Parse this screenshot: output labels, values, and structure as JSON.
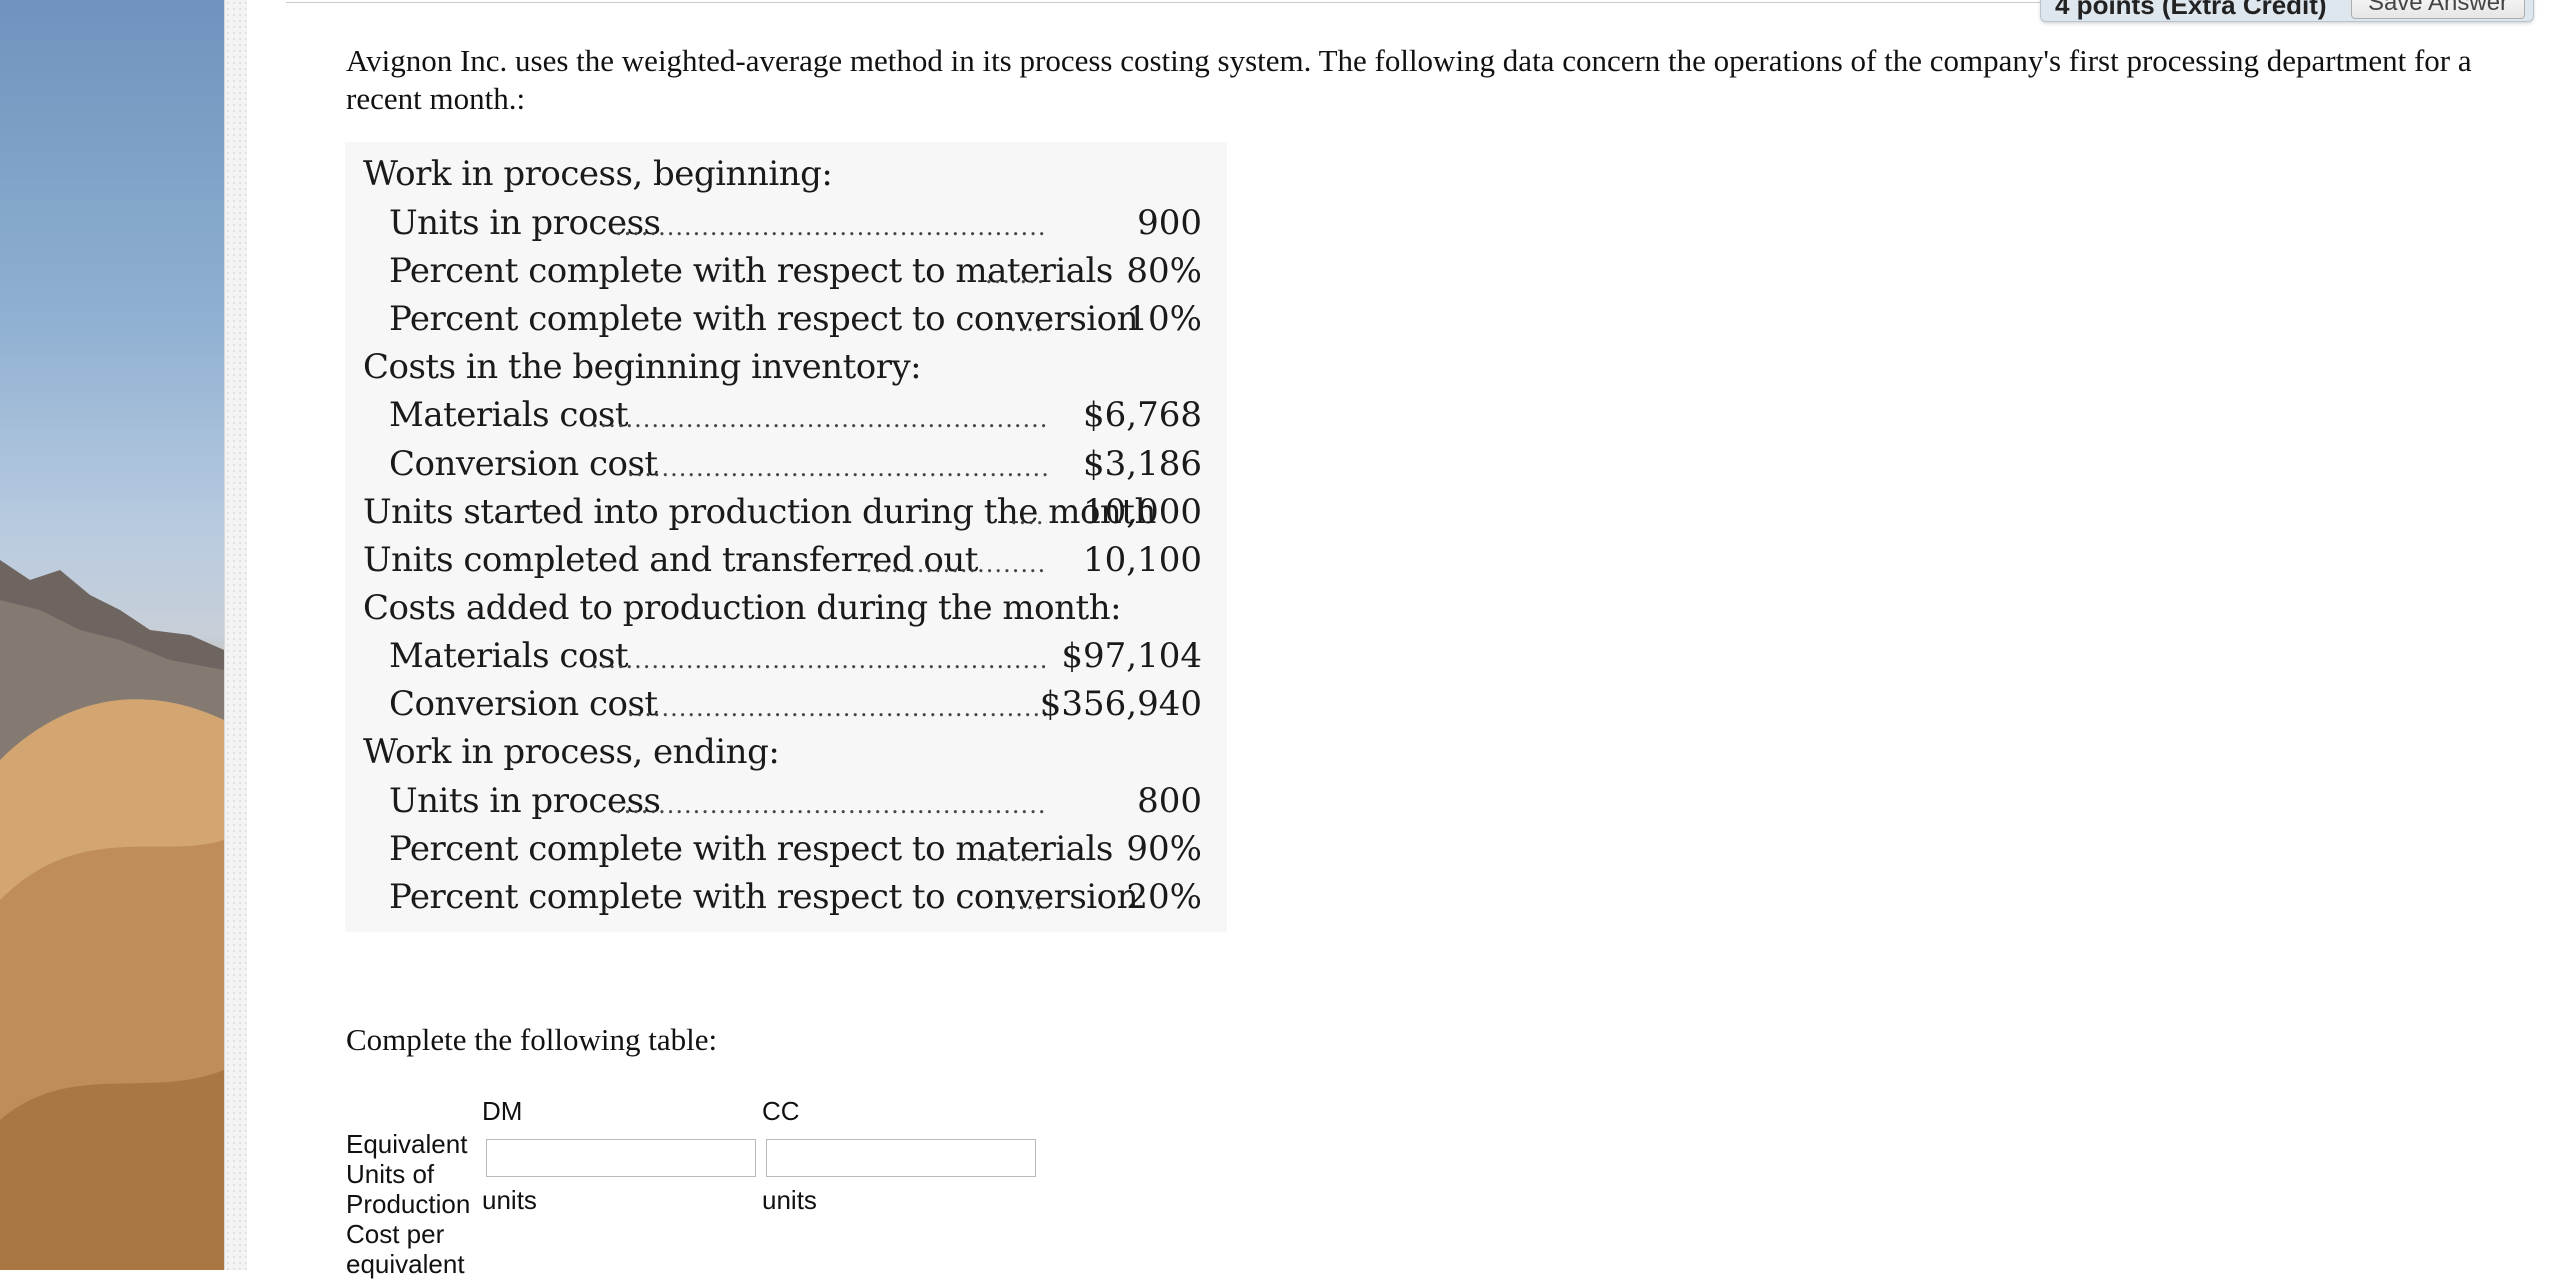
{
  "header": {
    "points_label": "4 points (Extra Credit)",
    "save_label": "Save Answer"
  },
  "question": {
    "text": "Avignon Inc. uses the weighted-average method in its process costing system. The following data concern the operations of the company's first processing department for a recent month.:"
  },
  "data_table": {
    "rows": [
      {
        "label": "Work in process, beginning:",
        "value": ""
      },
      {
        "label": "Units in process",
        "value": "900"
      },
      {
        "label": "Percent complete with respect to materials",
        "value": "80%"
      },
      {
        "label": "Percent complete with respect to conversion",
        "value": "10%"
      },
      {
        "label": "Costs in the beginning inventory:",
        "value": ""
      },
      {
        "label": "Materials cost",
        "value": "$6,768"
      },
      {
        "label": "Conversion cost",
        "value": "$3,186"
      },
      {
        "label": "Units started into production during the month",
        "value": "10,000"
      },
      {
        "label": "Units completed and transferred out",
        "value": "10,100"
      },
      {
        "label": "Costs added to production during the month:",
        "value": ""
      },
      {
        "label": "Materials cost",
        "value": "$97,104"
      },
      {
        "label": "Conversion cost",
        "value": "$356,940"
      },
      {
        "label": "Work in process, ending:",
        "value": ""
      },
      {
        "label": "Units in process",
        "value": "800"
      },
      {
        "label": "Percent complete with respect to materials",
        "value": "90%"
      },
      {
        "label": "Percent complete with respect to conversion",
        "value": "20%"
      }
    ]
  },
  "answer": {
    "prompt": "Complete the following table:",
    "col_dm": "DM",
    "col_cc": "CC",
    "row1_label_a": "Equivalent",
    "row1_label_b": "Units of",
    "row1_label_c": "Production",
    "unit_dm": "units",
    "unit_cc": "units",
    "row2_label_a": "Cost per",
    "row2_label_b": "equivalent",
    "dm_value": "",
    "cc_value": ""
  }
}
